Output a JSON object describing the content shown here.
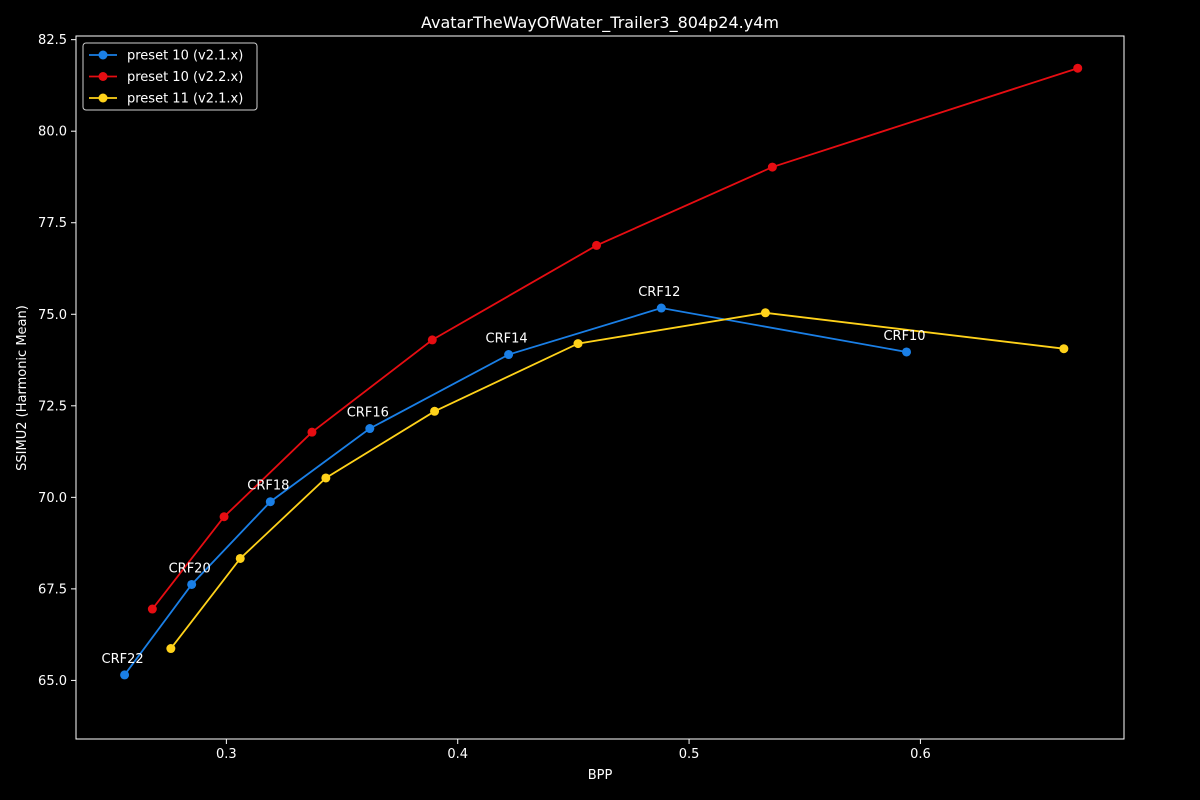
{
  "chart_data": {
    "type": "line",
    "title": "AvatarTheWayOfWater_Trailer3_804p24.y4m",
    "xlabel": "BPP",
    "ylabel": "SSIMU2 (Harmonic Mean)",
    "xlim": [
      0.235,
      0.688
    ],
    "ylim": [
      63.4,
      82.6
    ],
    "xticks": [
      0.3,
      0.4,
      0.5,
      0.6
    ],
    "xtick_labels": [
      "0.3",
      "0.4",
      "0.5",
      "0.6"
    ],
    "yticks": [
      65.0,
      67.5,
      70.0,
      72.5,
      75.0,
      77.5,
      80.0,
      82.5
    ],
    "ytick_labels": [
      "65.0",
      "67.5",
      "70.0",
      "72.5",
      "75.0",
      "77.5",
      "80.0",
      "82.5"
    ],
    "grid": false,
    "legend_position": "top-left",
    "series": [
      {
        "name": "preset 10 (v2.1.x)",
        "color": "#1a7fe6",
        "x": [
          0.256,
          0.285,
          0.319,
          0.362,
          0.422,
          0.488,
          0.594
        ],
        "y": [
          65.15,
          67.62,
          69.88,
          71.88,
          73.9,
          75.17,
          73.97
        ]
      },
      {
        "name": "preset 10 (v2.2.x)",
        "color": "#e60d12",
        "x": [
          0.268,
          0.299,
          0.337,
          0.389,
          0.46,
          0.536,
          0.668
        ],
        "y": [
          66.95,
          69.47,
          71.78,
          74.3,
          76.88,
          79.02,
          81.72
        ]
      },
      {
        "name": "preset 11 (v2.1.x)",
        "color": "#ffd21a",
        "x": [
          0.276,
          0.306,
          0.343,
          0.39,
          0.452,
          0.533,
          0.662
        ],
        "y": [
          65.87,
          68.33,
          70.53,
          72.35,
          74.2,
          75.04,
          74.06
        ]
      }
    ],
    "annotations": [
      {
        "text": "CRF22",
        "x": 0.256,
        "y": 65.15
      },
      {
        "text": "CRF20",
        "x": 0.285,
        "y": 67.62
      },
      {
        "text": "CRF18",
        "x": 0.319,
        "y": 69.88
      },
      {
        "text": "CRF16",
        "x": 0.362,
        "y": 71.88
      },
      {
        "text": "CRF14",
        "x": 0.422,
        "y": 73.9
      },
      {
        "text": "CRF12",
        "x": 0.488,
        "y": 75.17
      },
      {
        "text": "CRF10",
        "x": 0.594,
        "y": 73.97
      }
    ]
  }
}
